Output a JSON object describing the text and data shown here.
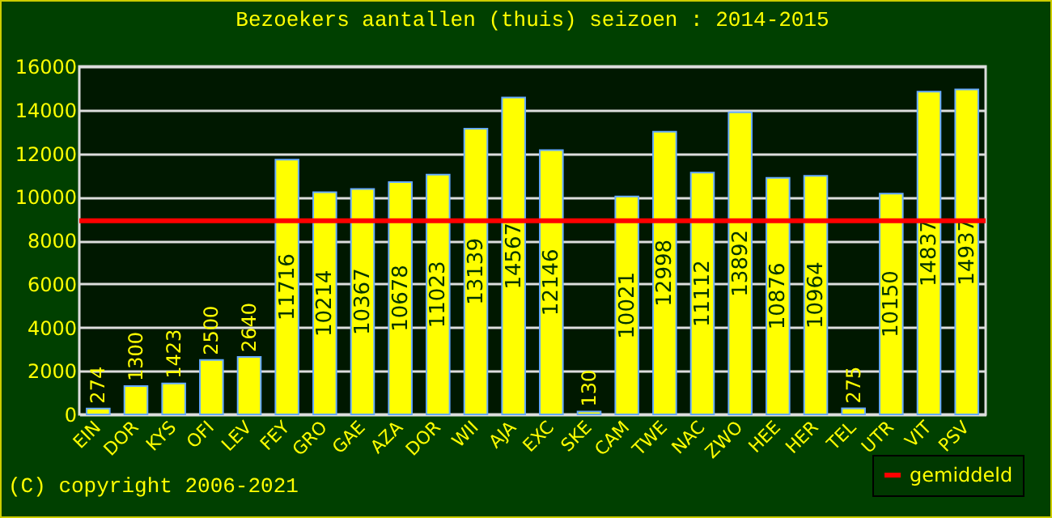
{
  "chart_data": {
    "type": "bar",
    "title": "Bezoekers aantallen (thuis) seizoen : 2014-2015",
    "categories": [
      "EIN",
      "DOR",
      "KYS",
      "OFI",
      "LEV",
      "FEY",
      "GRO",
      "GAE",
      "AZA",
      "DOR",
      "WII",
      "AJA",
      "EXC",
      "SKE",
      "CAM",
      "TWE",
      "NAC",
      "ZWO",
      "HEE",
      "HER",
      "TEL",
      "UTR",
      "VIT",
      "PSV"
    ],
    "values": [
      274,
      1300,
      1423,
      2500,
      2640,
      11716,
      10214,
      10367,
      10678,
      11023,
      13139,
      14567,
      12146,
      130,
      10021,
      12998,
      11112,
      13892,
      10876,
      10964,
      275,
      10150,
      14837,
      14937
    ],
    "color": "#ffff00",
    "data_labels": true,
    "ylim": [
      0,
      16000
    ],
    "yticks": [
      0,
      2000,
      4000,
      6000,
      8000,
      10000,
      12000,
      14000,
      16000
    ],
    "grid": "y",
    "ref_lines": [
      {
        "axis": "y",
        "value": 8900,
        "label": "gemiddeld",
        "color": "#ff0000"
      }
    ],
    "legend": "bottom right",
    "annotations": [
      "(C) copyright 2006-2021"
    ]
  }
}
